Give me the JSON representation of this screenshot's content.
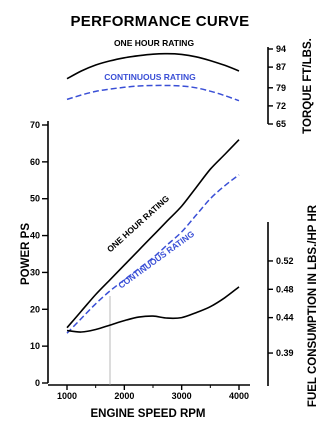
{
  "chart_data": {
    "type": "line",
    "title": "PERFORMANCE CURVE",
    "x": {
      "label": "ENGINE SPEED RPM",
      "ticks": [
        1000,
        2000,
        3000,
        4000
      ],
      "range": [
        1000,
        4000
      ]
    },
    "panels": {
      "torque": {
        "ylabel": "TORQUE FT/LBS.",
        "ticks": [
          65,
          72,
          79,
          87,
          94
        ],
        "series": [
          {
            "name": "ONE HOUR RATING",
            "style": "solid",
            "color": "#000000",
            "x": [
              1000,
              1250,
              1500,
              1750,
              2000,
              2250,
              2500,
              2750,
              3000,
              3250,
              3500,
              3750,
              4000
            ],
            "y": [
              82.5,
              85.5,
              87.8,
              89.4,
              90.6,
              91.4,
              92.0,
              92.2,
              91.9,
              91.0,
              89.5,
              87.7,
              85.5
            ]
          },
          {
            "name": "CONTINUOUS RATING",
            "style": "dashed",
            "color": "#3a4fd6",
            "x": [
              1000,
              1250,
              1500,
              1750,
              2000,
              2250,
              2500,
              2750,
              3000,
              3250,
              3500,
              3750,
              4000
            ],
            "y": [
              74.5,
              76.2,
              77.6,
              78.5,
              79.2,
              79.7,
              79.9,
              79.9,
              79.7,
              79.0,
              77.7,
              76.0,
              74.0
            ]
          }
        ]
      },
      "power": {
        "ylabel": "POWER PS",
        "ticks": [
          0,
          10,
          20,
          30,
          40,
          50,
          60,
          70
        ],
        "ylim": [
          0,
          70
        ],
        "series": [
          {
            "name": "ONE HOUR RATING",
            "style": "solid",
            "color": "#000000",
            "x": [
              1000,
              1250,
              1500,
              1750,
              2000,
              2250,
              2500,
              2750,
              3000,
              3250,
              3500,
              3750,
              4000
            ],
            "y": [
              15,
              19.5,
              24,
              28,
              32,
              36,
              40,
              44,
              48,
              53,
              58,
              62,
              66
            ]
          },
          {
            "name": "CONTINUOUS RATING",
            "style": "dashed",
            "color": "#3a4fd6",
            "x": [
              1000,
              1250,
              1500,
              1750,
              2000,
              2250,
              2500,
              2750,
              3000,
              3250,
              3500,
              3750,
              4000
            ],
            "y": [
              13.5,
              17.5,
              21.5,
              25,
              28,
              31,
              34,
              37.5,
              41,
              45.5,
              50,
              53.5,
              56.5
            ]
          }
        ]
      },
      "fuel": {
        "ylabel": "FUEL CONSUMPTION IN LBS./HP HR",
        "ticks": [
          0.39,
          0.44,
          0.48,
          0.52
        ],
        "ylim": [
          0.335,
          0.575
        ],
        "series": [
          {
            "name": "",
            "style": "solid",
            "color": "#000000",
            "x": [
              1000,
              1250,
              1500,
              1750,
              2000,
              2250,
              2500,
              2750,
              3000,
              3250,
              3500,
              3750,
              4000
            ],
            "y": [
              0.4218,
              0.4197,
              0.4232,
              0.4295,
              0.4358,
              0.4407,
              0.4421,
              0.4393,
              0.44,
              0.447,
              0.4554,
              0.468,
              0.4834
            ]
          }
        ]
      }
    },
    "grid": false,
    "legend": "labels on curves"
  }
}
